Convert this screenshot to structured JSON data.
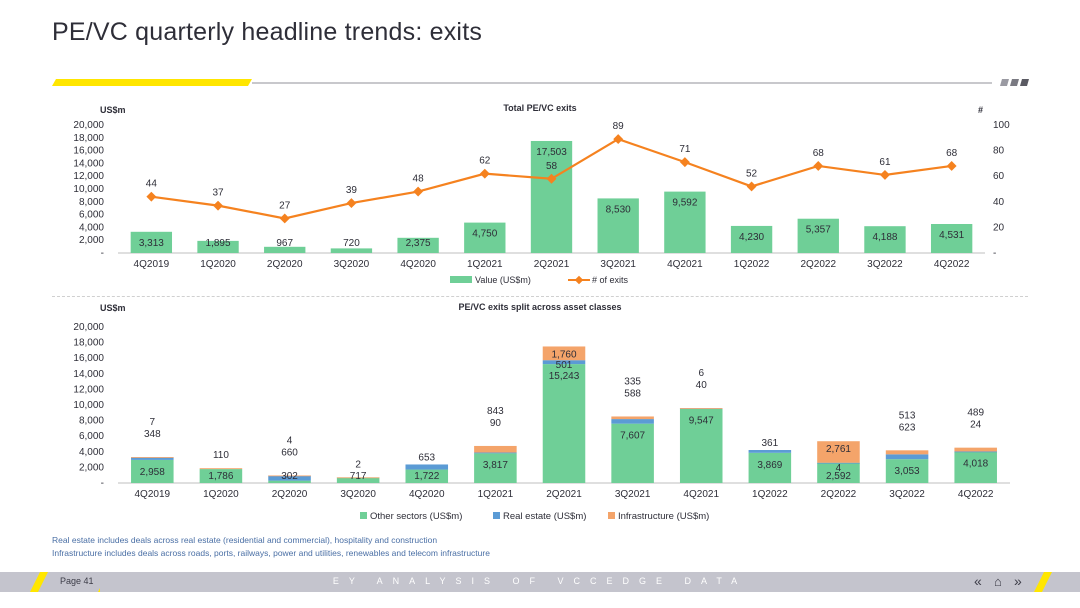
{
  "title": "PE/VC quarterly headline trends: exits",
  "footnotes": [
    "Real estate includes deals across real estate (residential and commercial), hospitality and construction",
    "Infrastructure includes deals across roads, ports, railways, power and utilities, renewables and telecom infrastructure"
  ],
  "footer": {
    "page_label": "Page 41",
    "caption": "EY ANALYSIS OF VCCEDGE DATA",
    "nav_icons": [
      "double-chevron-left-icon",
      "home-icon",
      "double-chevron-right-icon"
    ]
  },
  "colors": {
    "value": "#6fcf97",
    "exits_line": "#f5821f",
    "other_sectors": "#6fcf97",
    "real_estate": "#5b9bd5",
    "infrastructure": "#f4a46a",
    "accent": "#ffe600"
  },
  "chart_data": [
    {
      "type": "bar",
      "title": "Total PE/VC exits",
      "ylabel": "US$m",
      "y2label": "#",
      "ylim": [
        0,
        20000
      ],
      "y_ticks": [
        "-",
        "2,000",
        "4,000",
        "6,000",
        "8,000",
        "10,000",
        "12,000",
        "14,000",
        "16,000",
        "18,000",
        "20,000"
      ],
      "y2lim": [
        0,
        100
      ],
      "y2_ticks": [
        "-",
        "20",
        "40",
        "60",
        "80",
        "100"
      ],
      "categories": [
        "4Q2019",
        "1Q2020",
        "2Q2020",
        "3Q2020",
        "4Q2020",
        "1Q2021",
        "2Q2021",
        "3Q2021",
        "4Q2021",
        "1Q2022",
        "2Q2022",
        "3Q2022",
        "4Q2022"
      ],
      "series": [
        {
          "name": "Value (US$m)",
          "kind": "bar",
          "axis": "left",
          "values": [
            3313,
            1895,
            967,
            720,
            2375,
            4750,
            17503,
            8530,
            9592,
            4230,
            5357,
            4188,
            4531
          ],
          "labels": [
            "3,313",
            "1,895",
            "967",
            "720",
            "2,375",
            "4,750",
            "17,503",
            "8,530",
            "9,592",
            "4,230",
            "5,357",
            "4,188",
            "4,531"
          ]
        },
        {
          "name": "# of exits",
          "kind": "line",
          "axis": "right",
          "values": [
            44,
            37,
            27,
            39,
            48,
            62,
            58,
            89,
            71,
            52,
            68,
            61,
            68
          ],
          "labels": [
            "44",
            "37",
            "27",
            "39",
            "48",
            "62",
            "58",
            "89",
            "71",
            "52",
            "68",
            "61",
            "68"
          ]
        }
      ],
      "legend": "bottom"
    },
    {
      "type": "bar",
      "stacked": true,
      "title": "PE/VC exits split across asset classes",
      "ylabel": "US$m",
      "ylim": [
        0,
        20000
      ],
      "y_ticks": [
        "-",
        "2,000",
        "4,000",
        "6,000",
        "8,000",
        "10,000",
        "12,000",
        "14,000",
        "16,000",
        "18,000",
        "20,000"
      ],
      "categories": [
        "4Q2019",
        "1Q2020",
        "2Q2020",
        "3Q2020",
        "4Q2020",
        "1Q2021",
        "2Q2021",
        "3Q2021",
        "4Q2021",
        "1Q2022",
        "2Q2022",
        "3Q2022",
        "4Q2022"
      ],
      "series": [
        {
          "name": "Other sectors (US$m)",
          "values": [
            2958,
            1786,
            302,
            717,
            1722,
            3817,
            15243,
            7607,
            9547,
            3869,
            2592,
            3053,
            4018
          ],
          "labels": [
            "2,958",
            "1,786",
            "302",
            "717",
            "1,722",
            "3,817",
            "15,243",
            "7,607",
            "9,547",
            "3,869",
            "2,592",
            "3,053",
            "4,018"
          ]
        },
        {
          "name": "Real estate (US$m)",
          "values": [
            348,
            0,
            660,
            0,
            653,
            90,
            501,
            588,
            40,
            361,
            4,
            623,
            24
          ],
          "labels": [
            "348",
            "",
            "660",
            "",
            "653",
            "90",
            "501",
            "588",
            "40",
            "361",
            "4",
            "623",
            "24"
          ]
        },
        {
          "name": "Infrastructure (US$m)",
          "values": [
            7,
            110,
            4,
            2,
            0,
            843,
            1760,
            335,
            6,
            0,
            2761,
            513,
            489
          ],
          "labels": [
            "7",
            "110",
            "4",
            "2",
            "",
            "843",
            "1,760",
            "335",
            "6",
            "",
            "2,761",
            "513",
            "489"
          ]
        }
      ],
      "legend": "bottom"
    }
  ]
}
